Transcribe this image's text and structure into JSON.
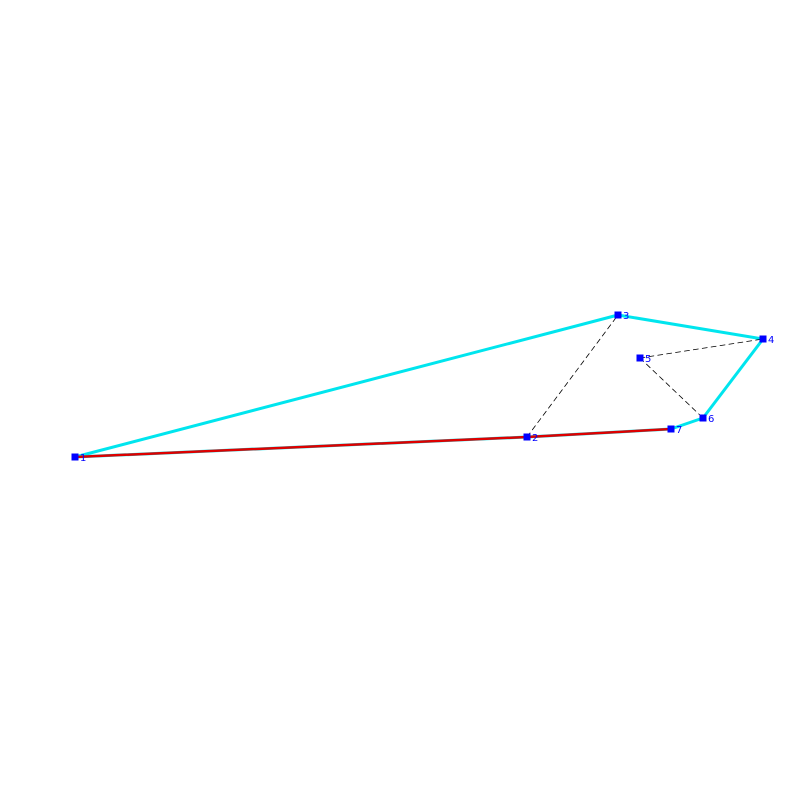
{
  "colors": {
    "hull_edge": "#00e5ee",
    "path_edge": "#dd0000",
    "dashed_edge": "#000000",
    "node": "#0000ff",
    "label": "#0000ff",
    "background": "#ffffff"
  },
  "nodes": [
    {
      "id": "1",
      "label": "1"
    },
    {
      "id": "2",
      "label": "2"
    },
    {
      "id": "3",
      "label": "3"
    },
    {
      "id": "4",
      "label": "4"
    },
    {
      "id": "5",
      "label": "5"
    },
    {
      "id": "6",
      "label": "6"
    },
    {
      "id": "7",
      "label": "7"
    }
  ],
  "edges": {
    "hull": [
      [
        "1",
        "3"
      ],
      [
        "3",
        "4"
      ],
      [
        "4",
        "6"
      ],
      [
        "6",
        "7"
      ],
      [
        "7",
        "2"
      ],
      [
        "2",
        "1"
      ]
    ],
    "path": [
      [
        "1",
        "2"
      ],
      [
        "2",
        "7"
      ]
    ],
    "dashed": [
      [
        "2",
        "3"
      ],
      [
        "5",
        "4"
      ],
      [
        "5",
        "6"
      ]
    ]
  }
}
